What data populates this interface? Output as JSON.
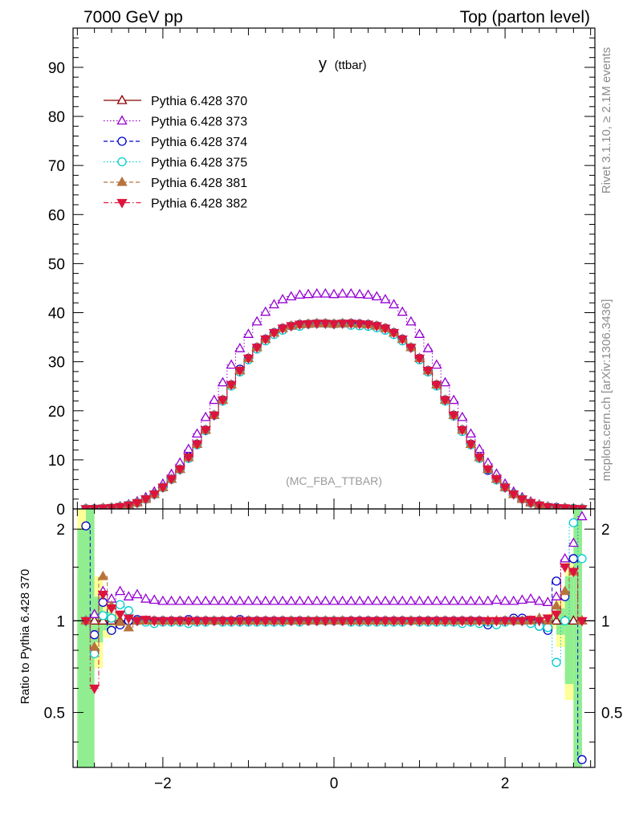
{
  "header": {
    "left": "7000 GeV pp",
    "right": "Top (parton level)"
  },
  "side_labels": {
    "rivet": "Rivet 3.1.10, ≥ 2.1M events",
    "mcplots": "mcplots.cern.ch [arXiv:1306.3436]"
  },
  "chart_data": {
    "type": "scatter",
    "title_main": "y",
    "title_sub": "(ttbar)",
    "watermark": "(MC_FBA_TTBAR)",
    "ratio_ylabel": "Ratio to Pythia 6.428 370",
    "xlim": [
      -3.05,
      3.05
    ],
    "ylim_main": [
      0,
      98
    ],
    "ylim_ratio": [
      0.33,
      2.33
    ],
    "x_ticks": [
      -2,
      0,
      2
    ],
    "x_tick_labels": [
      "−2",
      "0",
      "2"
    ],
    "main_y_ticks": [
      0,
      10,
      20,
      30,
      40,
      50,
      60,
      70,
      80,
      90
    ],
    "main_y_tick_labels": [
      "0",
      "10",
      "20",
      "30",
      "40",
      "50",
      "60",
      "70",
      "80",
      "90"
    ],
    "ratio_y_ticks": [
      0.5,
      1,
      2
    ],
    "ratio_y_tick_labels": [
      "0.5",
      "1",
      "2"
    ],
    "legend_position": "top-left",
    "x": [
      -2.9,
      -2.8,
      -2.7,
      -2.6,
      -2.5,
      -2.4,
      -2.3,
      -2.2,
      -2.1,
      -2.0,
      -1.9,
      -1.8,
      -1.7,
      -1.6,
      -1.5,
      -1.4,
      -1.3,
      -1.2,
      -1.1,
      -1.0,
      -0.9,
      -0.8,
      -0.7,
      -0.6,
      -0.5,
      -0.4,
      -0.3,
      -0.2,
      -0.1,
      0.0,
      0.1,
      0.2,
      0.3,
      0.4,
      0.5,
      0.6,
      0.7,
      0.8,
      0.9,
      1.0,
      1.1,
      1.2,
      1.3,
      1.4,
      1.5,
      1.6,
      1.7,
      1.8,
      1.9,
      2.0,
      2.1,
      2.2,
      2.3,
      2.4,
      2.5,
      2.6,
      2.7,
      2.8,
      2.9
    ],
    "reference": [
      0.02,
      0.05,
      0.12,
      0.22,
      0.42,
      0.75,
      1.25,
      2.0,
      3.0,
      4.4,
      6.1,
      8.1,
      10.5,
      13.2,
      16.1,
      19.1,
      22.2,
      25.3,
      28.2,
      30.7,
      32.9,
      34.6,
      35.9,
      36.8,
      37.3,
      37.6,
      37.7,
      37.8,
      37.8,
      37.7,
      37.8,
      37.8,
      37.7,
      37.6,
      37.3,
      36.8,
      35.9,
      34.6,
      32.9,
      30.7,
      28.2,
      25.3,
      22.2,
      19.1,
      16.1,
      13.2,
      10.5,
      8.1,
      6.1,
      4.4,
      3.0,
      2.0,
      1.25,
      0.75,
      0.42,
      0.22,
      0.12,
      0.05,
      0.02
    ],
    "series": [
      {
        "name": "Pythia 6.428 370",
        "color": "#8b0000",
        "marker": "triangle-up-open",
        "line": "solid",
        "ratio": [
          1,
          1,
          1,
          1,
          1,
          1,
          1,
          1,
          1,
          1,
          1,
          1,
          1,
          1,
          1,
          1,
          1,
          1,
          1,
          1,
          1,
          1,
          1,
          1,
          1,
          1,
          1,
          1,
          1,
          1,
          1,
          1,
          1,
          1,
          1,
          1,
          1,
          1,
          1,
          1,
          1,
          1,
          1,
          1,
          1,
          1,
          1,
          1,
          1,
          1,
          1,
          1,
          1,
          1,
          1,
          1,
          1,
          1,
          1
        ]
      },
      {
        "name": "Pythia 6.428 373",
        "color": "#9400d3",
        "marker": "triangle-up-open",
        "line": "dotted",
        "ratio": [
          1.0,
          1.05,
          1.25,
          1.18,
          1.25,
          1.2,
          1.22,
          1.18,
          1.17,
          1.16,
          1.16,
          1.16,
          1.16,
          1.16,
          1.16,
          1.16,
          1.16,
          1.16,
          1.16,
          1.16,
          1.16,
          1.16,
          1.16,
          1.16,
          1.16,
          1.16,
          1.16,
          1.16,
          1.16,
          1.16,
          1.16,
          1.16,
          1.16,
          1.16,
          1.16,
          1.16,
          1.16,
          1.16,
          1.16,
          1.16,
          1.16,
          1.16,
          1.16,
          1.16,
          1.16,
          1.16,
          1.16,
          1.16,
          1.17,
          1.16,
          1.16,
          1.17,
          1.18,
          1.16,
          1.15,
          1.2,
          1.6,
          1.8,
          2.2
        ]
      },
      {
        "name": "Pythia 6.428 374",
        "color": "#0000cd",
        "marker": "circle-open",
        "line": "dashed",
        "ratio": [
          2.05,
          0.9,
          1.15,
          0.93,
          0.97,
          1.0,
          1.01,
          1.0,
          1.0,
          1.0,
          1.0,
          1.0,
          1.01,
          1.0,
          1.0,
          1.0,
          1.0,
          1.0,
          1.01,
          1.0,
          1.0,
          1.0,
          1.0,
          1.0,
          1.0,
          1.0,
          1.0,
          1.0,
          1.0,
          1.0,
          1.0,
          1.0,
          1.0,
          1.0,
          1.0,
          1.0,
          1.0,
          1.0,
          1.0,
          1.0,
          1.0,
          1.0,
          1.0,
          1.0,
          1.0,
          1.0,
          1.0,
          0.97,
          0.99,
          1.0,
          1.02,
          1.02,
          1.0,
          0.96,
          0.93,
          1.35,
          1.2,
          1.6,
          0.35
        ]
      },
      {
        "name": "Pythia 6.428 375",
        "color": "#00ced1",
        "marker": "circle-open",
        "line": "dotted",
        "ratio": [
          1.0,
          0.78,
          1.04,
          1.02,
          1.13,
          1.08,
          1.0,
          0.99,
          0.98,
          0.99,
          0.99,
          0.99,
          0.98,
          0.99,
          0.99,
          1.0,
          0.99,
          0.99,
          0.99,
          0.99,
          0.99,
          0.99,
          0.99,
          0.99,
          1.0,
          0.99,
          1.0,
          1.0,
          1.0,
          1.0,
          1.0,
          0.99,
          0.99,
          0.99,
          0.99,
          0.99,
          0.99,
          0.99,
          1.0,
          0.99,
          0.99,
          0.99,
          0.99,
          0.99,
          0.98,
          0.99,
          0.98,
          0.99,
          0.97,
          0.99,
          1.0,
          1.0,
          0.98,
          0.96,
          0.95,
          0.73,
          1.0,
          2.1,
          1.6
        ]
      },
      {
        "name": "Pythia 6.428 381",
        "color": "#b8733c",
        "marker": "triangle-up-filled",
        "line": "dashed",
        "ratio": [
          1.0,
          0.82,
          1.4,
          1.12,
          0.99,
          0.95,
          1.0,
          1.0,
          1.0,
          1.0,
          1.0,
          1.0,
          1.0,
          1.0,
          1.0,
          1.0,
          1.0,
          1.0,
          1.0,
          1.0,
          1.0,
          1.0,
          1.0,
          1.0,
          1.0,
          1.0,
          1.0,
          1.0,
          1.0,
          1.0,
          1.0,
          1.0,
          1.0,
          1.0,
          1.0,
          1.0,
          1.0,
          1.0,
          1.0,
          1.0,
          1.0,
          1.0,
          1.0,
          1.0,
          1.0,
          1.0,
          1.0,
          1.0,
          1.0,
          1.0,
          1.0,
          1.0,
          1.0,
          1.02,
          1.0,
          1.12,
          1.25,
          1.45,
          1.0
        ]
      },
      {
        "name": "Pythia 6.428 382",
        "color": "#dc143c",
        "marker": "triangle-down-filled",
        "line": "dashdot",
        "ratio": [
          1.0,
          0.6,
          1.22,
          1.1,
          1.05,
          1.02,
          1.0,
          1.01,
          1.0,
          1.0,
          1.0,
          1.0,
          1.0,
          1.0,
          1.0,
          1.0,
          1.0,
          1.0,
          1.0,
          1.0,
          1.0,
          1.0,
          1.0,
          1.0,
          1.0,
          1.0,
          1.0,
          1.0,
          1.0,
          1.0,
          1.0,
          1.0,
          1.0,
          1.0,
          1.0,
          1.0,
          1.0,
          1.0,
          1.0,
          1.0,
          1.0,
          1.0,
          1.0,
          1.0,
          1.0,
          1.0,
          1.0,
          1.0,
          1.0,
          1.0,
          1.0,
          1.0,
          1.01,
          1.0,
          1.02,
          1.05,
          1.5,
          1.45,
          1.0
        ]
      }
    ]
  }
}
